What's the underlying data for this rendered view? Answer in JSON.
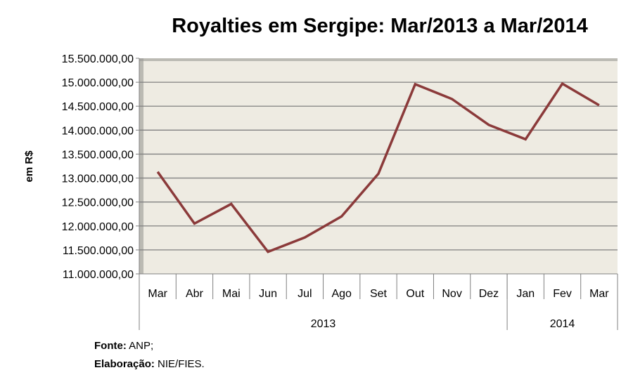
{
  "chart_data": {
    "type": "line",
    "title": "Royalties em Sergipe: Mar/2013 a Mar/2014",
    "ylabel": "em R$",
    "xlabel": "",
    "categories": [
      "Mar",
      "Abr",
      "Mai",
      "Jun",
      "Jul",
      "Ago",
      "Set",
      "Out",
      "Nov",
      "Dez",
      "Jan",
      "Fev",
      "Mar"
    ],
    "groups": [
      {
        "label": "2013",
        "count": 10
      },
      {
        "label": "2014",
        "count": 3
      }
    ],
    "series": [
      {
        "name": "Royalties",
        "color": "#8B3A3A",
        "values": [
          13130000,
          12050000,
          12460000,
          11460000,
          11760000,
          12200000,
          13090000,
          14960000,
          14650000,
          14110000,
          13810000,
          14970000,
          14520000
        ]
      }
    ],
    "ylim": [
      11000000,
      15500000
    ],
    "yticks": [
      "11.000.000,00",
      "11.500.000,00",
      "12.000.000,00",
      "12.500.000,00",
      "13.000.000,00",
      "13.500.000,00",
      "14.000.000,00",
      "14.500.000,00",
      "15.000.000,00",
      "15.500.000,00"
    ],
    "grid": true,
    "legend": "none"
  },
  "source": {
    "fonte_label": "Fonte:",
    "fonte_value": "ANP;",
    "elab_label": "Elaboração:",
    "elab_value": "NIE/FIES."
  }
}
